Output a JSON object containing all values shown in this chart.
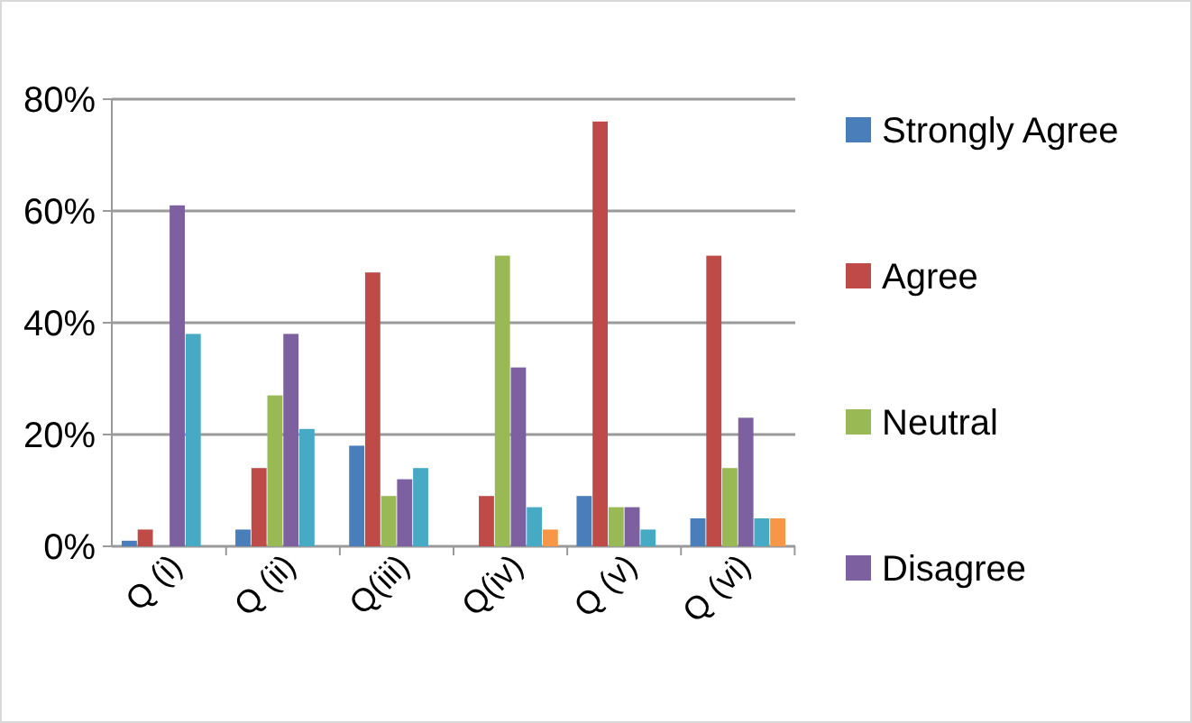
{
  "chart_data": {
    "type": "bar",
    "categories": [
      "Q (i)",
      "Q (ii)",
      "Q(iii)",
      "Q(iv)",
      "Q (v)",
      "Q (vi)"
    ],
    "series": [
      {
        "name": "Strongly Agree",
        "color": "#4a7ebb",
        "values": [
          1,
          3,
          18,
          0,
          9,
          5
        ]
      },
      {
        "name": "Agree",
        "color": "#be4b48",
        "values": [
          3,
          14,
          49,
          9,
          76,
          52
        ]
      },
      {
        "name": "Neutral",
        "color": "#98b954",
        "values": [
          0,
          27,
          9,
          52,
          7,
          14
        ]
      },
      {
        "name": "Disagree",
        "color": "#7d60a0",
        "values": [
          61,
          38,
          12,
          32,
          7,
          23
        ]
      },
      {
        "color": "#46aac5",
        "values": [
          38,
          21,
          14,
          7,
          3,
          5
        ]
      },
      {
        "color": "#f79646",
        "values": [
          0,
          0,
          0,
          3,
          0,
          5
        ]
      }
    ],
    "ylim": [
      0,
      80
    ],
    "yticks": [
      {
        "value": 0,
        "label": "0%"
      },
      {
        "value": 20,
        "label": "20%"
      },
      {
        "value": 40,
        "label": "40%"
      },
      {
        "value": 60,
        "label": "60%"
      },
      {
        "value": 80,
        "label": "80%"
      }
    ],
    "grid": "y",
    "legend": "right"
  }
}
